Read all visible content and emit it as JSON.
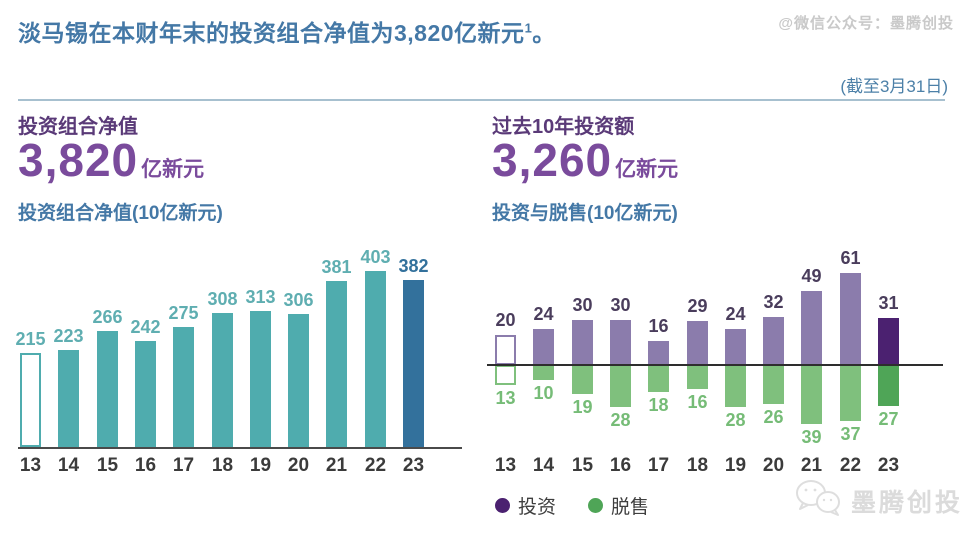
{
  "watermarks": {
    "top": "@微信公众号：墨腾创投",
    "bottom": "墨腾创投"
  },
  "header": {
    "title": "淡马锡在本财年末的投资组合净值为3,820亿新元",
    "footnote_marker": "1",
    "title_period": "。",
    "as_of": "(截至3月31日)"
  },
  "left_panel": {
    "label": "投资组合净值",
    "value": "3,820",
    "unit": "亿新元",
    "chart_title": "投资组合净值(10亿新元)"
  },
  "right_panel": {
    "label": "过去10年投资额",
    "value": "3,260",
    "unit": "亿新元",
    "chart_title": "投资与脱售(10亿新元)",
    "legend": [
      {
        "label": "投资"
      },
      {
        "label": "脱售"
      }
    ]
  },
  "chart_data": [
    {
      "type": "bar",
      "title": "投资组合净值(10亿新元)",
      "ylabel": "10亿新元",
      "categories": [
        "13",
        "14",
        "15",
        "16",
        "17",
        "18",
        "19",
        "20",
        "21",
        "22",
        "23"
      ],
      "values": [
        215,
        223,
        266,
        242,
        275,
        308,
        313,
        306,
        381,
        403,
        382
      ],
      "value_labels": true,
      "gridlines": false,
      "first_bar_style": "outline",
      "last_bar_style": "solid-highlight"
    },
    {
      "type": "diverging-bar",
      "title": "投资与脱售(10亿新元)",
      "ylabel": "10亿新元",
      "categories": [
        "13",
        "14",
        "15",
        "16",
        "17",
        "18",
        "19",
        "20",
        "21",
        "22",
        "23"
      ],
      "series": [
        {
          "name": "投资",
          "direction": "up",
          "values": [
            20,
            24,
            30,
            30,
            16,
            29,
            24,
            32,
            49,
            61,
            31
          ]
        },
        {
          "name": "脱售",
          "direction": "down",
          "values": [
            13,
            10,
            19,
            28,
            18,
            16,
            28,
            26,
            39,
            37,
            27
          ]
        }
      ],
      "value_labels": true,
      "gridlines": false,
      "legend_position": "bottom-left",
      "first_bar_style": "outline",
      "last_bar_style": "solid-highlight"
    }
  ],
  "colors": {
    "header_blue": "#4478A6",
    "purple_label": "#5A3A78",
    "purple_value": "#7A4B9C",
    "teal": "#4FACAE",
    "teal_label": "#5FAEB1",
    "blue_highlight": "#33719C",
    "purple": "#8B7CAC",
    "purple_highlight": "#4B2170",
    "green": "#7FC07D",
    "green_highlight": "#4FA557",
    "pos_label": "#4A3D5C",
    "neg_label": "#76BC77",
    "axis_dark": "#4A4A4A",
    "year_label": "#3B3B3B",
    "divider": "#A7C0CF",
    "watermark": "#C9C9C9",
    "legend_text": "#3F3F3F"
  }
}
